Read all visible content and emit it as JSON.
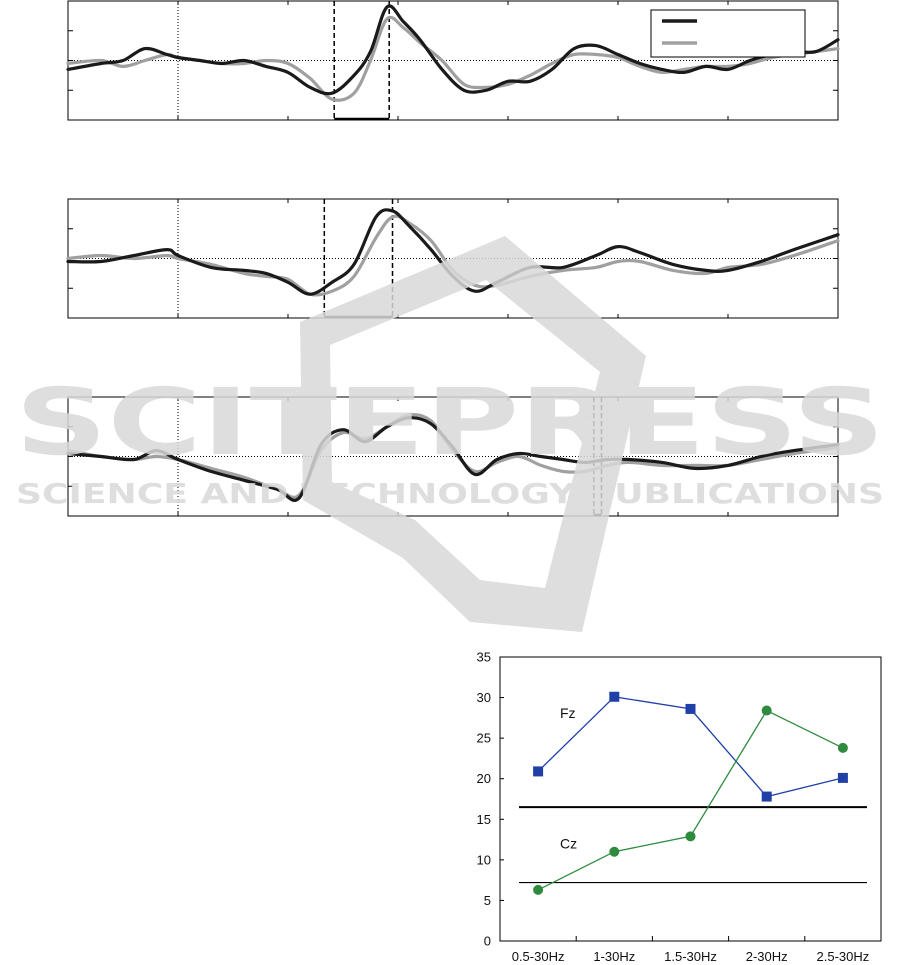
{
  "watermark": {
    "brand": "SCITEPRESS",
    "tagline": "SCIENCE AND TECHNOLOGY PUBLICATIONS"
  },
  "chart_data": [
    {
      "type": "line",
      "panel": "waveform-1",
      "x_range": [
        0,
        7
      ],
      "y_range": [
        -2,
        2
      ],
      "grid": "dotted at x=1 and y=0",
      "legend": "top-right",
      "window": [
        2.42,
        2.92
      ],
      "series": [
        {
          "color": "#1a1a1a",
          "x": [
            0,
            0.3,
            0.5,
            0.7,
            0.9,
            1.0,
            1.2,
            1.4,
            1.6,
            1.8,
            2.0,
            2.2,
            2.4,
            2.6,
            2.75,
            2.9,
            3.05,
            3.2,
            3.4,
            3.6,
            3.8,
            4.0,
            4.2,
            4.4,
            4.6,
            4.8,
            5.0,
            5.2,
            5.4,
            5.6,
            5.8,
            6.0,
            6.2,
            6.4,
            6.6,
            6.8,
            7.0
          ],
          "y": [
            -0.3,
            -0.1,
            0.0,
            0.4,
            0.2,
            0.1,
            0.0,
            -0.1,
            0.0,
            -0.2,
            -0.4,
            -0.9,
            -1.1,
            -0.5,
            0.3,
            1.8,
            1.3,
            0.7,
            -0.3,
            -1.0,
            -1.0,
            -0.7,
            -0.7,
            -0.3,
            0.4,
            0.5,
            0.2,
            -0.1,
            -0.3,
            -0.4,
            -0.2,
            -0.3,
            0.0,
            0.2,
            0.3,
            0.3,
            0.7
          ]
        },
        {
          "color": "#a0a0a0",
          "x": [
            0,
            0.3,
            0.5,
            0.7,
            0.9,
            1.0,
            1.2,
            1.4,
            1.6,
            1.8,
            2.0,
            2.2,
            2.4,
            2.6,
            2.75,
            2.9,
            3.05,
            3.2,
            3.4,
            3.6,
            3.8,
            4.0,
            4.2,
            4.4,
            4.6,
            4.8,
            5.0,
            5.2,
            5.4,
            5.6,
            5.8,
            6.0,
            6.2,
            6.4,
            6.6,
            6.8,
            7.0
          ],
          "y": [
            -0.1,
            0.0,
            -0.2,
            0.0,
            0.2,
            0.1,
            0.0,
            -0.1,
            -0.1,
            0.0,
            -0.1,
            -0.6,
            -1.3,
            -1.1,
            0.0,
            1.4,
            1.1,
            0.6,
            0.0,
            -0.8,
            -0.9,
            -0.8,
            -0.5,
            -0.1,
            0.2,
            0.2,
            0.1,
            -0.2,
            -0.4,
            -0.3,
            -0.2,
            -0.2,
            -0.1,
            0.1,
            0.2,
            0.3,
            0.4
          ]
        }
      ]
    },
    {
      "type": "line",
      "panel": "waveform-2",
      "x_range": [
        0,
        7
      ],
      "y_range": [
        -2,
        2
      ],
      "grid": "dotted at x=1 and y=0",
      "window": [
        2.33,
        2.95
      ],
      "series": [
        {
          "color": "#1a1a1a",
          "x": [
            0,
            0.3,
            0.6,
            0.9,
            1.0,
            1.3,
            1.6,
            1.8,
            2.0,
            2.2,
            2.4,
            2.6,
            2.8,
            2.95,
            3.1,
            3.3,
            3.5,
            3.7,
            3.9,
            4.2,
            4.5,
            4.8,
            5.0,
            5.2,
            5.5,
            5.8,
            6.0,
            6.3,
            6.6,
            7.0
          ],
          "y": [
            -0.1,
            -0.1,
            0.1,
            0.3,
            0.1,
            -0.3,
            -0.4,
            -0.5,
            -0.8,
            -1.2,
            -0.8,
            -0.2,
            1.4,
            1.6,
            1.1,
            0.3,
            -0.6,
            -1.1,
            -0.8,
            -0.3,
            -0.3,
            0.1,
            0.4,
            0.2,
            -0.2,
            -0.4,
            -0.4,
            -0.1,
            0.3,
            0.8
          ]
        },
        {
          "color": "#a0a0a0",
          "x": [
            0,
            0.3,
            0.6,
            0.9,
            1.0,
            1.3,
            1.6,
            1.8,
            2.0,
            2.2,
            2.4,
            2.6,
            2.8,
            2.95,
            3.1,
            3.3,
            3.5,
            3.7,
            3.9,
            4.2,
            4.5,
            4.8,
            5.0,
            5.2,
            5.5,
            5.8,
            6.0,
            6.3,
            6.6,
            7.0
          ],
          "y": [
            0.0,
            0.1,
            0.0,
            0.1,
            0.0,
            -0.2,
            -0.5,
            -0.6,
            -0.7,
            -1.2,
            -1.1,
            -0.6,
            0.7,
            1.4,
            1.2,
            0.6,
            -0.4,
            -0.9,
            -0.9,
            -0.6,
            -0.4,
            -0.3,
            -0.1,
            -0.1,
            -0.4,
            -0.5,
            -0.3,
            -0.2,
            0.1,
            0.6
          ]
        }
      ]
    },
    {
      "type": "line",
      "panel": "waveform-3",
      "x_range": [
        0,
        7
      ],
      "y_range": [
        -2,
        2
      ],
      "grid": "dotted at x=1 and y=0",
      "window": [
        4.78,
        4.85
      ],
      "series": [
        {
          "color": "#1a1a1a",
          "x": [
            0,
            0.3,
            0.6,
            0.8,
            1.0,
            1.3,
            1.6,
            1.9,
            2.1,
            2.3,
            2.5,
            2.7,
            2.9,
            3.1,
            3.3,
            3.5,
            3.7,
            3.9,
            4.1,
            4.3,
            4.5,
            4.7,
            4.9,
            5.1,
            5.4,
            5.7,
            6.0,
            6.3,
            6.6,
            7.0
          ],
          "y": [
            0.1,
            0.0,
            -0.1,
            0.2,
            -0.1,
            -0.5,
            -0.8,
            -1.1,
            -1.4,
            0.4,
            0.9,
            0.5,
            1.0,
            1.3,
            1.1,
            0.3,
            -0.6,
            -0.1,
            0.1,
            0.0,
            -0.1,
            -0.2,
            -0.1,
            -0.1,
            -0.2,
            -0.4,
            -0.3,
            0.0,
            0.2,
            0.4
          ]
        },
        {
          "color": "#a0a0a0",
          "x": [
            0,
            0.3,
            0.6,
            0.8,
            1.0,
            1.3,
            1.6,
            1.9,
            2.1,
            2.3,
            2.5,
            2.7,
            2.9,
            3.1,
            3.3,
            3.5,
            3.7,
            3.9,
            4.1,
            4.3,
            4.5,
            4.7,
            4.9,
            5.1,
            5.4,
            5.7,
            6.0,
            6.3,
            6.6,
            7.0
          ],
          "y": [
            0.2,
            0.0,
            -0.1,
            0.0,
            -0.1,
            -0.4,
            -0.7,
            -1.1,
            -1.3,
            0.2,
            0.8,
            0.6,
            1.0,
            1.4,
            1.2,
            0.2,
            -0.5,
            -0.2,
            0.0,
            -0.3,
            -0.5,
            -0.5,
            -0.3,
            -0.2,
            -0.3,
            -0.3,
            -0.3,
            -0.1,
            0.1,
            0.3
          ]
        }
      ]
    },
    {
      "type": "line",
      "panel": "frequency-band-chart",
      "categories": [
        "0.5-30Hz",
        "1-30Hz",
        "1.5-30Hz",
        "2-30Hz",
        "2.5-30Hz"
      ],
      "yticks": [
        0,
        5,
        10,
        15,
        20,
        25,
        30,
        35
      ],
      "ylim": [
        0,
        35
      ],
      "series": [
        {
          "name": "Fz",
          "color": "#2040a8",
          "marker": "square",
          "values": [
            20.9,
            30.1,
            28.6,
            17.8,
            20.1
          ]
        },
        {
          "name": "Cz",
          "color": "#2e8a3e",
          "marker": "circle",
          "values": [
            6.3,
            11.0,
            12.9,
            28.4,
            23.8
          ]
        }
      ],
      "reference_lines": [
        16.5,
        7.2
      ]
    }
  ]
}
